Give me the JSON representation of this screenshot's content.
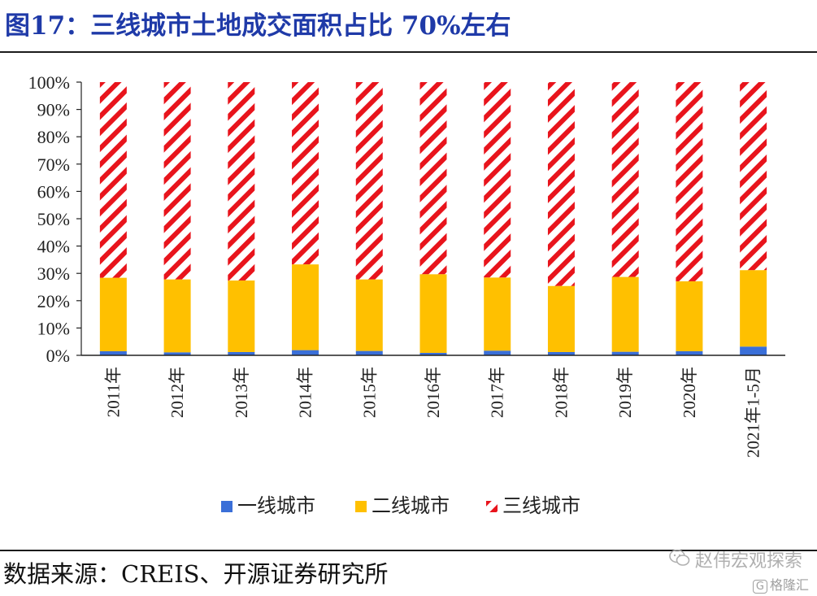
{
  "title": "图17：三线城市土地成交面积占比 70%左右",
  "source": "数据来源：CREIS、开源证券研究所",
  "watermark": {
    "account": "赵伟宏观探索",
    "logo_icon": "wechat-icon",
    "brand": "格隆汇",
    "brand_icon": "gelonghui-logo-icon"
  },
  "colors": {
    "tier1": "#3a6fd8",
    "tier2": "#ffc000",
    "tier3": "#e8141c",
    "title": "#1f3aa8"
  },
  "chart_data": {
    "type": "bar",
    "stacked": true,
    "normalized": true,
    "categories": [
      "2011年",
      "2012年",
      "2013年",
      "2014年",
      "2015年",
      "2016年",
      "2017年",
      "2018年",
      "2019年",
      "2020年",
      "2021年1-5月"
    ],
    "series": [
      {
        "name": "一线城市",
        "values": [
          1.5,
          1.1,
          1.2,
          1.9,
          1.6,
          0.9,
          1.7,
          1.2,
          1.3,
          1.5,
          3.2
        ]
      },
      {
        "name": "二线城市",
        "values": [
          26.9,
          26.7,
          26.2,
          31.4,
          26.2,
          28.8,
          26.8,
          24.2,
          27.4,
          25.6,
          28.0
        ]
      },
      {
        "name": "三线城市",
        "values": [
          71.6,
          72.2,
          72.6,
          66.7,
          72.2,
          70.3,
          71.5,
          74.6,
          71.3,
          72.9,
          68.8
        ]
      }
    ],
    "ylim": [
      0,
      100
    ],
    "yticks": [
      "0%",
      "10%",
      "20%",
      "30%",
      "40%",
      "50%",
      "60%",
      "70%",
      "80%",
      "90%",
      "100%"
    ],
    "legend": "bottom",
    "grid": false
  }
}
